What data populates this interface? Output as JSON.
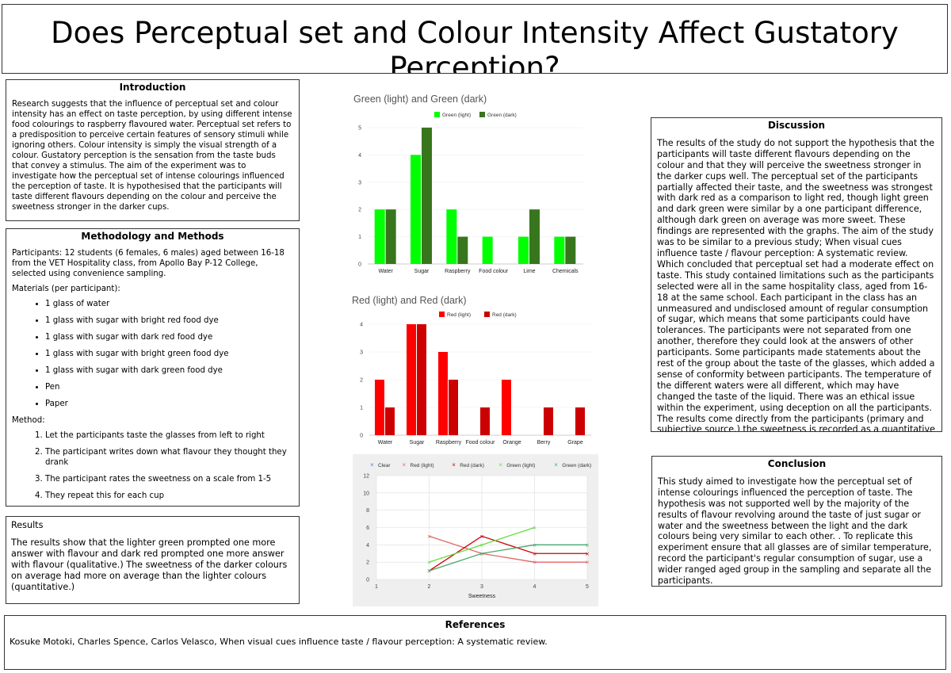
{
  "title": "Does Perceptual set and Colour Intensity Affect Gustatory Perception?",
  "introduction": {
    "heading": "Introduction",
    "text": "Research suggests that the influence of perceptual set and colour intensity has an effect on taste perception, by using different intense food colourings to raspberry flavoured water. Perceptual set refers to a predisposition to perceive certain features of sensory stimuli while ignoring others. Colour intensity is simply the visual strength of a colour. Gustatory perception is the sensation from the taste buds that convey a stimulus.  The aim of the experiment was to investigate how the perceptual set of intense colourings influenced the perception of taste. It is hypothesised that the participants will taste different flavours depending on the colour and perceive the sweetness stronger in the darker cups."
  },
  "methodology": {
    "heading": "Methodology and Methods",
    "participants": "Participants: 12 students (6 females, 6 males) aged between 16-18 from the VET Hospitality class, from Apollo Bay P-12 College, selected using convenience sampling.",
    "materials_label": "Materials (per participant):",
    "materials": [
      "1 glass of water",
      "1 glass with sugar with bright red food dye",
      "1 glass with sugar with dark red food dye",
      "1 glass with sugar with bright green food dye",
      "1 glass with sugar with dark green food dye",
      "Pen",
      "Paper"
    ],
    "method_label": "Method:",
    "steps": [
      "Let the participants taste the glasses from left to right",
      "The participant writes down what flavour they thought they drank",
      "The participant rates the sweetness on a scale from 1-5",
      "They repeat this for each cup"
    ]
  },
  "results": {
    "heading": "Results",
    "text": "The results show that the lighter green prompted one more answer with flavour and dark red prompted one more answer with flavour (qualitative.) The sweetness of the darker colours on average had more on average than the lighter colours (quantitative.)"
  },
  "discussion": {
    "heading": "Discussion",
    "text": "The results of the study do not support the hypothesis that the participants will taste different flavours depending on the colour and that they will perceive the sweetness stronger in the darker cups well. The perceptual set of the participants partially affected their taste, and the sweetness was strongest with dark red as a comparison to light red, though light green and dark green were similar by a one participant difference, although dark green on average was more sweet. These findings are represented with the graphs. The aim of the study was to be similar to a previous study; When visual cues influence taste / flavour perception: A systematic review. Which concluded that perceptual set had a moderate effect on taste. This study contained limitations such as the participants selected were all in the same hospitality class, aged from 16-18 at the same school. Each participant in the class has an unmeasured and undisclosed amount of regular consumption of sugar, which means that some participants could have tolerances. The participants were not separated from one another, therefore they could look at the answers of other participants. Some participants made statements about the rest of the group about the taste of the glasses, which added a sense of conformity between participants. The temperature of the different waters were all different, which may have changed the taste of the liquid. There was an ethical issue within the experiment, using deception on all the participants. The results come directly from the participants (primary and subjective source.) the sweetness is recorded as a quantitative"
  },
  "conclusion": {
    "heading": "Conclusion",
    "text": "This study aimed to investigate how the perceptual set of intense colourings influenced the perception of taste. The hypothesis was not supported well by the majority of the results of flavour revolving around the taste of just sugar or water and the sweetness between the light and the dark colours being very similar to each other. . To replicate this experiment ensure that all glasses are of similar temperature, record the participant's regular consumption of sugar, use a wider ranged aged group in the sampling and separate all the participants."
  },
  "references": {
    "heading": "References",
    "text": "Kosuke Motoki, Charles Spence, Carlos Velasco, When visual cues influence taste / flavour perception: A systematic review."
  },
  "chart_data": [
    {
      "type": "bar",
      "title": "Green (light) and Green (dark)",
      "categories": [
        "Water",
        "Sugar",
        "Raspberry",
        "Food colour",
        "Lime",
        "Chemicals"
      ],
      "series": [
        {
          "name": "Green (light)",
          "color": "#00ff00",
          "values": [
            2,
            4,
            2,
            1,
            1,
            1
          ]
        },
        {
          "name": "Green (dark)",
          "color": "#38761d",
          "values": [
            2,
            5,
            1,
            0,
            2,
            1
          ]
        }
      ],
      "yticks": [
        0,
        1,
        2,
        3,
        4,
        5
      ],
      "ylim": [
        0,
        5
      ],
      "legend": "top"
    },
    {
      "type": "bar",
      "title": "Red (light) and Red (dark)",
      "categories": [
        "Water",
        "Sugar",
        "Raspberry",
        "Food colour",
        "Orange",
        "Berry",
        "Grape"
      ],
      "series": [
        {
          "name": "Red (light)",
          "color": "#ff0000",
          "values": [
            2,
            4,
            3,
            0,
            2,
            0,
            0
          ]
        },
        {
          "name": "Red (dark)",
          "color": "#cc0000",
          "values": [
            1,
            4,
            2,
            1,
            0,
            1,
            1
          ]
        }
      ],
      "yticks": [
        0,
        1,
        2,
        3,
        4
      ],
      "ylim": [
        0,
        4
      ],
      "legend": "top"
    },
    {
      "type": "line",
      "xlabel": "Sweetness",
      "x": [
        1,
        2,
        3,
        4,
        5
      ],
      "xticks": [
        1,
        2,
        3,
        4,
        5
      ],
      "yticks": [
        0,
        2,
        4,
        6,
        8,
        10,
        12
      ],
      "xlim": [
        1,
        5
      ],
      "ylim": [
        0,
        12
      ],
      "grid": true,
      "legend": "top",
      "series": [
        {
          "name": "Clear",
          "color": "#4a86e8",
          "marker": "×",
          "points": []
        },
        {
          "name": "Red (light)",
          "color": "#e06666",
          "marker": "×",
          "points": [
            [
              2,
              5
            ],
            [
              3,
              3
            ],
            [
              4,
              2
            ],
            [
              5,
              2
            ]
          ]
        },
        {
          "name": "Red (dark)",
          "color": "#cc0000",
          "marker": "×",
          "points": [
            [
              2,
              1
            ],
            [
              3,
              5
            ],
            [
              4,
              3
            ],
            [
              5,
              3
            ]
          ]
        },
        {
          "name": "Green (light)",
          "color": "#66dd44",
          "marker": "×",
          "points": [
            [
              2,
              2
            ],
            [
              3,
              4
            ],
            [
              4,
              6
            ]
          ]
        },
        {
          "name": "Green (dark)",
          "color": "#4aa86b",
          "marker": "×",
          "points": [
            [
              2,
              1
            ],
            [
              3,
              3
            ],
            [
              4,
              4
            ],
            [
              5,
              4
            ]
          ]
        }
      ]
    }
  ]
}
